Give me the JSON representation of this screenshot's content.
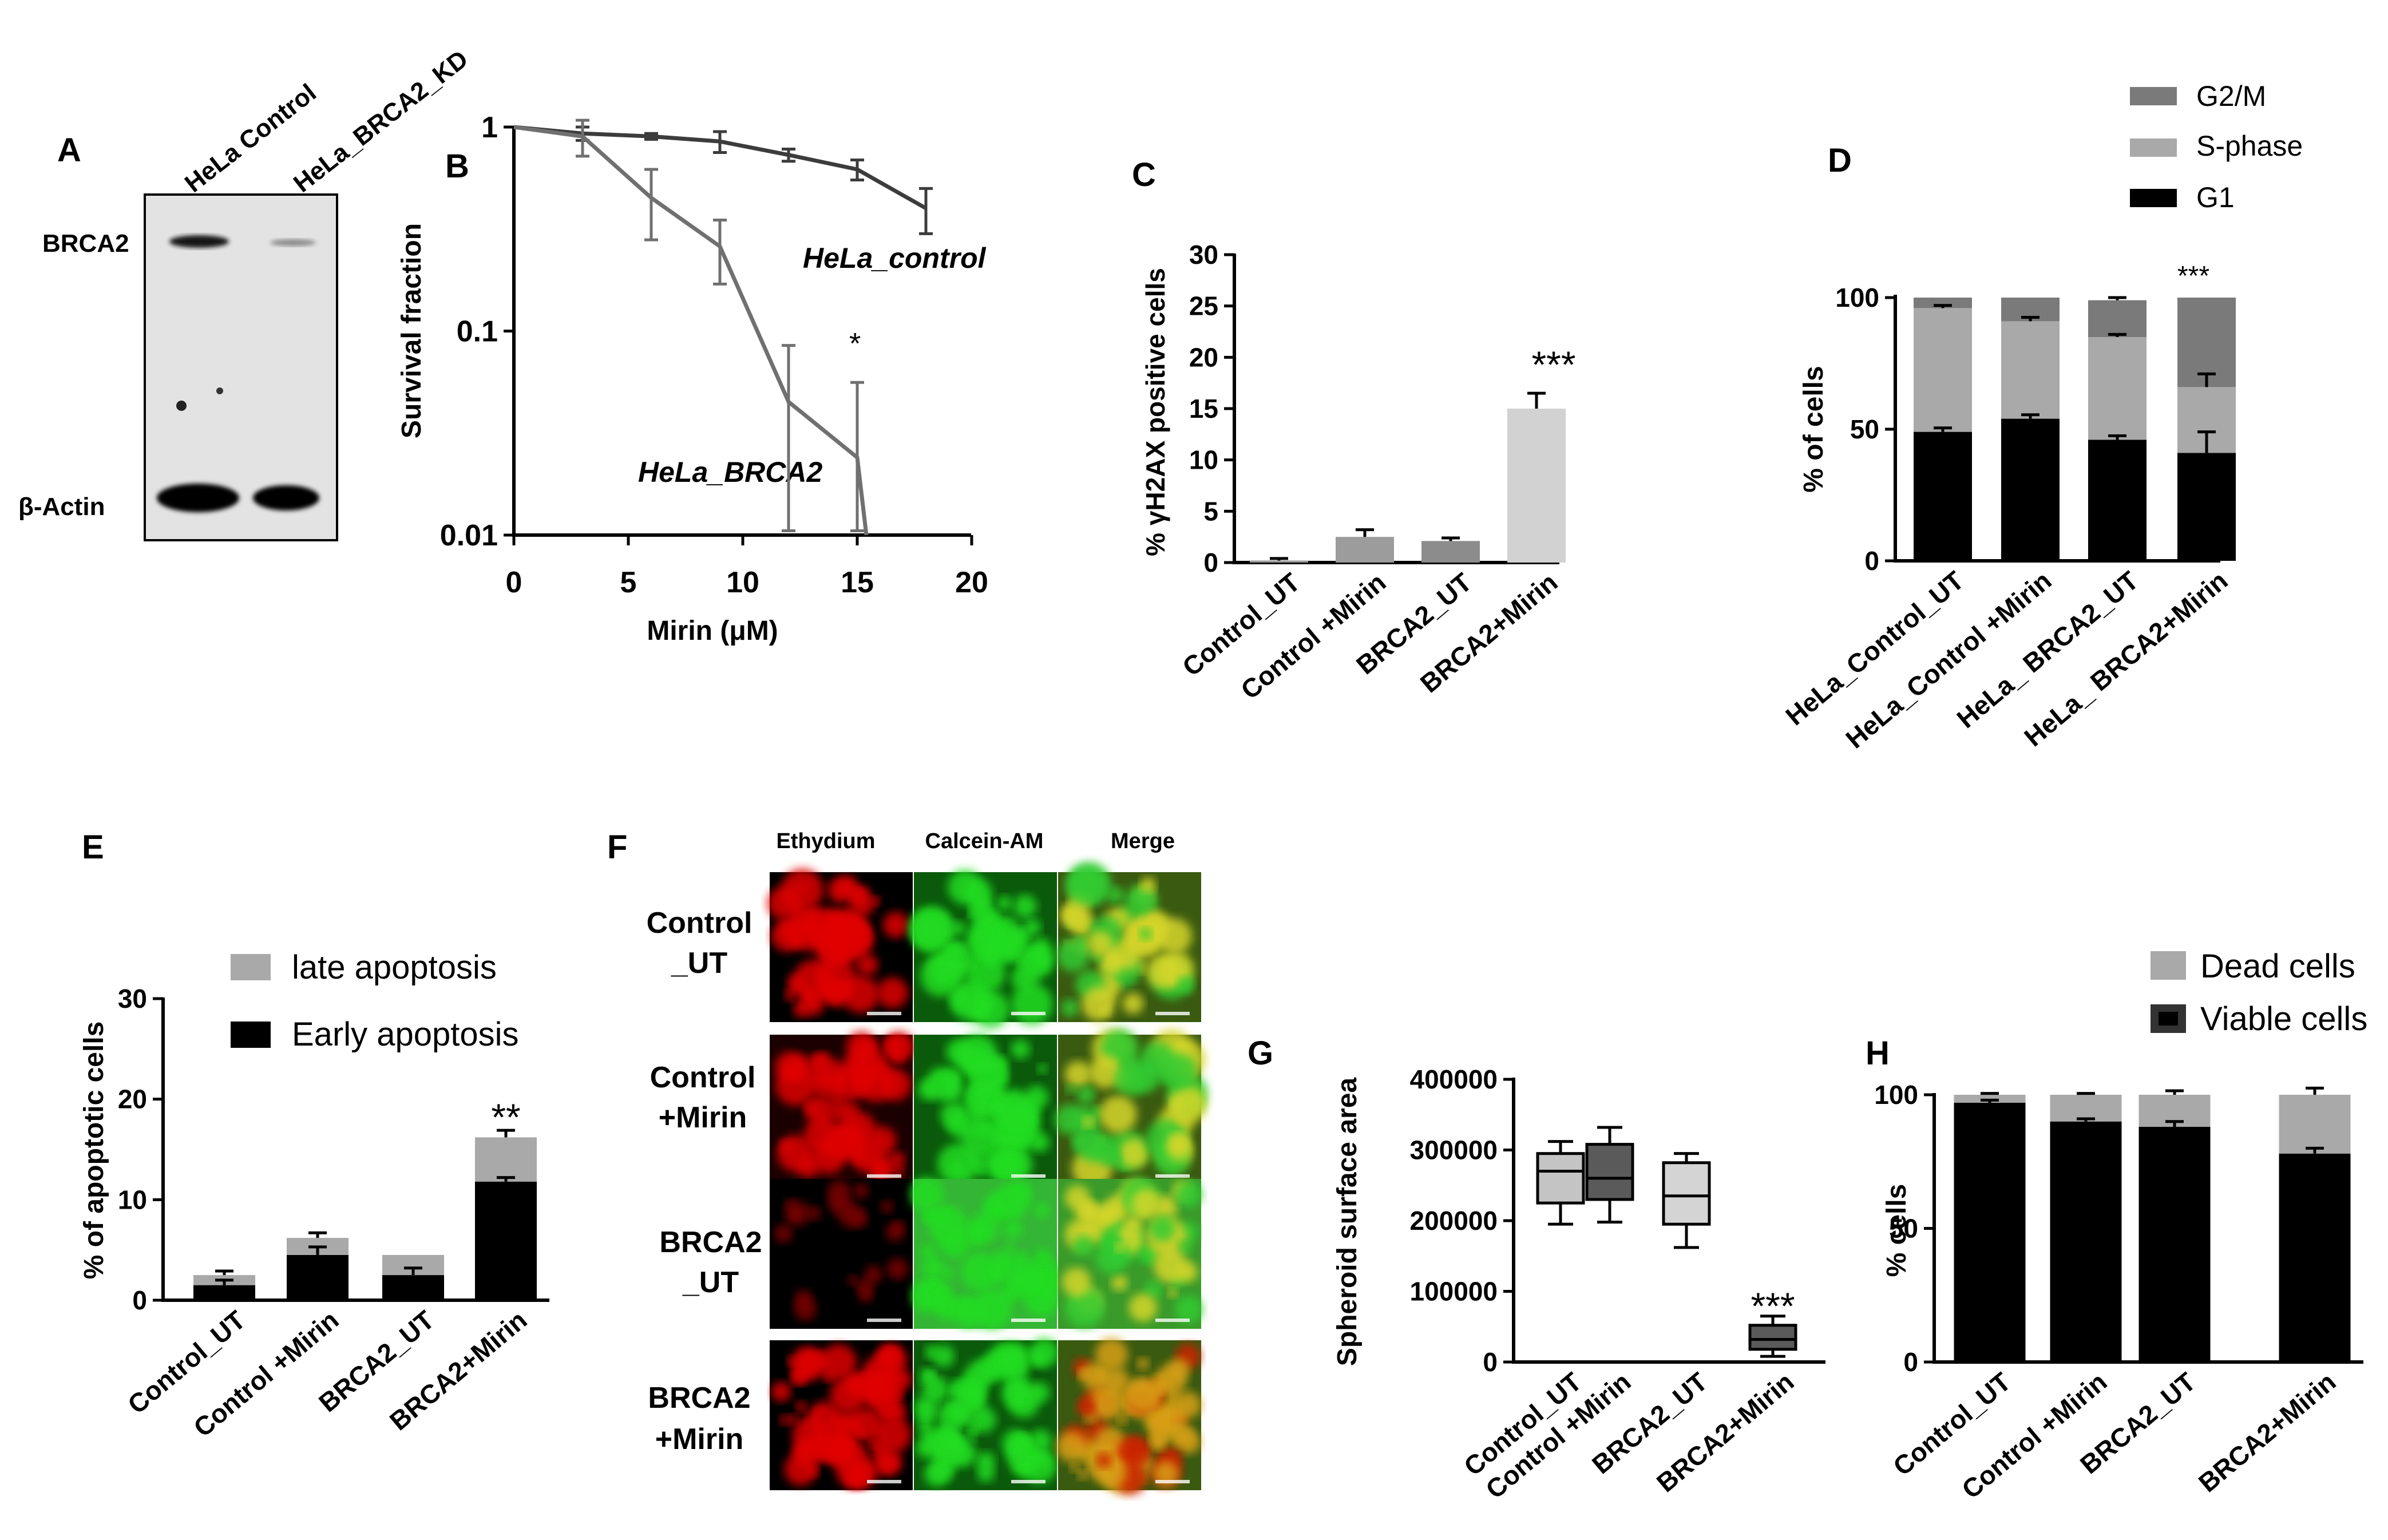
{
  "panels": {
    "A": "A",
    "B": "B",
    "C": "C",
    "D": "D",
    "E": "E",
    "F": "F",
    "G": "G",
    "H": "H"
  },
  "blot": {
    "lanes": [
      "HeLa Control",
      "HeLa_BRCA2_KD"
    ],
    "rows": [
      "BRCA2",
      "β-Actin"
    ]
  },
  "micrographs": {
    "columns": [
      "Ethydium",
      "Calcein-AM",
      "Merge"
    ],
    "rows": [
      [
        "Control",
        "_UT"
      ],
      [
        "Control",
        "+Mirin"
      ],
      [
        "BRCA2",
        "_UT"
      ],
      [
        "BRCA2",
        "+Mirin"
      ]
    ]
  },
  "chart_data": [
    {
      "panel": "B",
      "type": "line",
      "xlabel": "Mirin (μM)",
      "ylabel": "Survival fraction",
      "xlim": [
        0,
        20
      ],
      "ylim": [
        0.01,
        1
      ],
      "yscale": "log",
      "xticks": [
        0,
        5,
        10,
        15,
        20
      ],
      "yticks": [
        0.01,
        0.1,
        1
      ],
      "ytick_labels": [
        "0.01",
        "0.1",
        "1"
      ],
      "series": [
        {
          "name": "HeLa_control",
          "color": "#3c3c3c",
          "x": [
            0,
            3,
            6,
            9,
            12,
            15,
            18
          ],
          "y": [
            1.0,
            0.93,
            0.9,
            0.85,
            0.73,
            0.62,
            0.4
          ],
          "err": [
            0,
            0.07,
            0.03,
            0.1,
            0.05,
            0.07,
            0.1
          ]
        },
        {
          "name": "HeLa_BRCA2",
          "color": "#707070",
          "x": [
            0,
            3,
            6,
            9,
            12,
            15,
            15.4
          ],
          "y": [
            1.0,
            0.9,
            0.45,
            0.26,
            0.045,
            0.024,
            0.01
          ],
          "err": [
            0,
            0.18,
            0.17,
            0.09,
            0.04,
            0.032,
            0
          ]
        }
      ],
      "annotations": [
        "*"
      ]
    },
    {
      "panel": "C",
      "type": "bar",
      "ylabel": "% γH2AX positive  cells",
      "categories": [
        "Control_UT",
        "Control +Mirin",
        "BRCA2_UT",
        "BRCA2+Mirin"
      ],
      "values": [
        0.2,
        2.5,
        2.1,
        15.0
      ],
      "err": [
        0.2,
        0.7,
        0.3,
        1.5
      ],
      "colors": [
        "#9c9c9c",
        "#9c9c9c",
        "#8c8c8c",
        "#d2d2d2"
      ],
      "ylim": [
        0,
        30
      ],
      "yticks": [
        0,
        5,
        10,
        15,
        20,
        25,
        30
      ],
      "annotations": [
        "***"
      ]
    },
    {
      "panel": "D",
      "type": "bar",
      "stacked": true,
      "ylabel": "% of cells",
      "categories": [
        "HeLa_Control_UT",
        "HeLa_Control +Mirin",
        "HeLa_ BRCA2_UT",
        "HeLa_ BRCA2+Mirin"
      ],
      "series": [
        {
          "name": "G1",
          "color": "#000000",
          "values": [
            49,
            54,
            46,
            41
          ],
          "err": [
            1.5,
            1.5,
            1.5,
            8
          ]
        },
        {
          "name": "S-phase",
          "color": "#a9a9a9",
          "values": [
            47,
            37,
            39,
            25
          ],
          "err": [
            1,
            1.5,
            1,
            5
          ]
        },
        {
          "name": "G2/M",
          "color": "#7a7a7a",
          "values": [
            4,
            9,
            14,
            34
          ],
          "err": [
            0,
            0,
            1,
            0
          ]
        }
      ],
      "ylim": [
        0,
        100
      ],
      "yticks": [
        0,
        50,
        100
      ],
      "legend": "top-right",
      "annotations": [
        "***"
      ]
    },
    {
      "panel": "E",
      "type": "bar",
      "stacked": true,
      "ylabel": "% of apoptotic cells",
      "categories": [
        "Control_UT",
        "Control +Mirin",
        "BRCA2_UT",
        "BRCA2+Mirin"
      ],
      "series": [
        {
          "name": "Early apoptosis",
          "color": "#000000",
          "values": [
            1.5,
            4.5,
            2.5,
            11.8
          ],
          "err": [
            0.5,
            0.8,
            0.7,
            0.4
          ]
        },
        {
          "name": "late apoptosis",
          "color": "#a9a9a9",
          "values": [
            1.0,
            1.7,
            2.0,
            4.4
          ],
          "err": [
            0.4,
            0.5,
            0,
            0.7
          ]
        }
      ],
      "ylim": [
        0,
        30
      ],
      "yticks": [
        0,
        10,
        20,
        30
      ],
      "legend": "top",
      "annotations": [
        "**"
      ]
    },
    {
      "panel": "G",
      "type": "box",
      "ylabel": "Spheroid surface area",
      "categories": [
        "Control_UT",
        "Control +Mirin",
        "BRCA2_UT",
        "BRCA2+Mirin"
      ],
      "boxes": [
        {
          "min": 195000,
          "q1": 225000,
          "median": 270000,
          "q3": 295000,
          "max": 312000,
          "color": "#c4c4c4"
        },
        {
          "min": 198000,
          "q1": 230000,
          "median": 260000,
          "q3": 308000,
          "max": 332000,
          "color": "#5a5a5a"
        },
        {
          "min": 162000,
          "q1": 195000,
          "median": 235000,
          "q3": 282000,
          "max": 295000,
          "color": "#d4d4d4"
        },
        {
          "min": 8000,
          "q1": 18000,
          "median": 32000,
          "q3": 52000,
          "max": 65000,
          "color": "#5a5a5a"
        }
      ],
      "ylim": [
        0,
        400000
      ],
      "yticks": [
        0,
        100000,
        200000,
        300000,
        400000
      ],
      "ytick_labels": [
        "0",
        "100000",
        "200000",
        "300000",
        "400000"
      ],
      "annotations": [
        "***"
      ]
    },
    {
      "panel": "H",
      "type": "bar",
      "stacked": true,
      "ylabel": "%  cells",
      "categories": [
        "Control_UT",
        "Control +Mirin",
        "BRCA2_UT",
        "BRCA2+Mirin"
      ],
      "series": [
        {
          "name": "Viable cells",
          "color": "#000000",
          "values": [
            97,
            90,
            88,
            78
          ],
          "err": [
            1,
            1,
            2,
            2
          ]
        },
        {
          "name": "Dead cells",
          "color": "#a9a9a9",
          "values": [
            3,
            10,
            12,
            22
          ],
          "err": [
            0.5,
            0.5,
            1.5,
            2.5
          ]
        }
      ],
      "ylim": [
        0,
        100
      ],
      "yticks": [
        0,
        50,
        100
      ],
      "legend": "top-right",
      "annotations": [
        "***"
      ]
    }
  ]
}
